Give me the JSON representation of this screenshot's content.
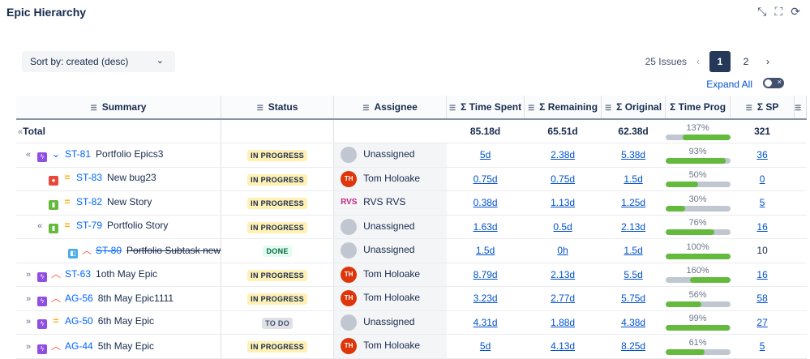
{
  "title": "Epic Hierarchy",
  "sort_label": "Sort by: created (desc)",
  "pagination": {
    "count": "25 Issues",
    "pages": [
      "1",
      "2"
    ],
    "current": "1"
  },
  "expand_all": "Expand All",
  "expand_all_on": false,
  "columns": [
    "Summary",
    "Status",
    "Assignee",
    "Σ Time Spent",
    "Σ Remaining",
    "Σ Original",
    "Σ Time Prog",
    "Σ SP"
  ],
  "total": {
    "label": "Total",
    "spent": "85.18d",
    "remaining": "65.51d",
    "original": "62.38d",
    "progress": "137%",
    "progress_value": 137,
    "sp": "321"
  },
  "rows": [
    {
      "indent": 1,
      "expander": "«",
      "type": "epic",
      "priority": "low",
      "key": "ST-81",
      "summary": "Portfolio Epics3",
      "status": "IN PROGRESS",
      "assignee": "Unassigned",
      "avatar": "unassigned",
      "spent": "5d",
      "remaining": "2.38d",
      "original": "5.38d",
      "progress": "93%",
      "progress_value": 93,
      "sp": "36",
      "done": false
    },
    {
      "indent": 2,
      "expander": "",
      "type": "bug",
      "priority": "medium",
      "key": "ST-83",
      "summary": "New bug23",
      "status": "IN PROGRESS",
      "assignee": "Tom Holoake",
      "avatar": "TH",
      "spent": "0.75d",
      "remaining": "0.75d",
      "original": "1.5d",
      "progress": "50%",
      "progress_value": 50,
      "sp": "0",
      "done": false
    },
    {
      "indent": 2,
      "expander": "",
      "type": "story",
      "priority": "medium",
      "key": "ST-82",
      "summary": "New Story",
      "status": "IN PROGRESS",
      "assignee": "RVS RVS",
      "avatar": "RVS",
      "spent": "0.38d",
      "remaining": "1.13d",
      "original": "1.25d",
      "progress": "30%",
      "progress_value": 30,
      "sp": "5",
      "done": false
    },
    {
      "indent": 2,
      "expander": "«",
      "type": "story",
      "priority": "medium",
      "key": "ST-79",
      "summary": "Portfolio Story",
      "status": "IN PROGRESS",
      "assignee": "Unassigned",
      "avatar": "unassigned",
      "spent": "1.63d",
      "remaining": "0.5d",
      "original": "2.13d",
      "progress": "76%",
      "progress_value": 76,
      "sp": "16",
      "done": false
    },
    {
      "indent": 3,
      "expander": "",
      "type": "subtask",
      "priority": "high",
      "key": "ST-80",
      "summary": "Portfolio Subtask new",
      "status": "DONE",
      "assignee": "Unassigned",
      "avatar": "unassigned",
      "spent": "1.5d",
      "remaining": "0h",
      "original": "1.5d",
      "progress": "100%",
      "progress_value": 100,
      "sp": "10",
      "done": true
    },
    {
      "indent": 1,
      "expander": "»",
      "type": "epic",
      "priority": "high",
      "key": "ST-63",
      "summary": "1oth May Epic",
      "status": "IN PROGRESS",
      "assignee": "Tom Holoake",
      "avatar": "TH",
      "spent": "8.79d",
      "remaining": "2.13d",
      "original": "5.5d",
      "progress": "160%",
      "progress_value": 160,
      "sp": "16",
      "done": false
    },
    {
      "indent": 1,
      "expander": "»",
      "type": "epic",
      "priority": "high",
      "key": "AG-56",
      "summary": "8th May Epic1111",
      "status": "IN PROGRESS",
      "assignee": "Tom Holoake",
      "avatar": "TH",
      "spent": "3.23d",
      "remaining": "2.77d",
      "original": "5.75d",
      "progress": "56%",
      "progress_value": 56,
      "sp": "58",
      "done": false
    },
    {
      "indent": 1,
      "expander": "»",
      "type": "epic",
      "priority": "medium",
      "key": "AG-50",
      "summary": "6th May Epic",
      "status": "TO DO",
      "assignee": "Unassigned",
      "avatar": "unassigned",
      "spent": "4.31d",
      "remaining": "1.88d",
      "original": "4.38d",
      "progress": "99%",
      "progress_value": 99,
      "sp": "27",
      "done": false
    },
    {
      "indent": 1,
      "expander": "»",
      "type": "epic",
      "priority": "high",
      "key": "AG-44",
      "summary": "5th May Epic",
      "status": "IN PROGRESS",
      "assignee": "Tom Holoake",
      "avatar": "TH",
      "spent": "5d",
      "remaining": "4.13d",
      "original": "8.25d",
      "progress": "61%",
      "progress_value": 61,
      "sp": "5",
      "done": false
    }
  ],
  "colors": {
    "accent": "#0052cc",
    "progress": "#63ba3c",
    "in_progress_bg": "#fff0b3",
    "done_bg": "#e3fcef"
  }
}
